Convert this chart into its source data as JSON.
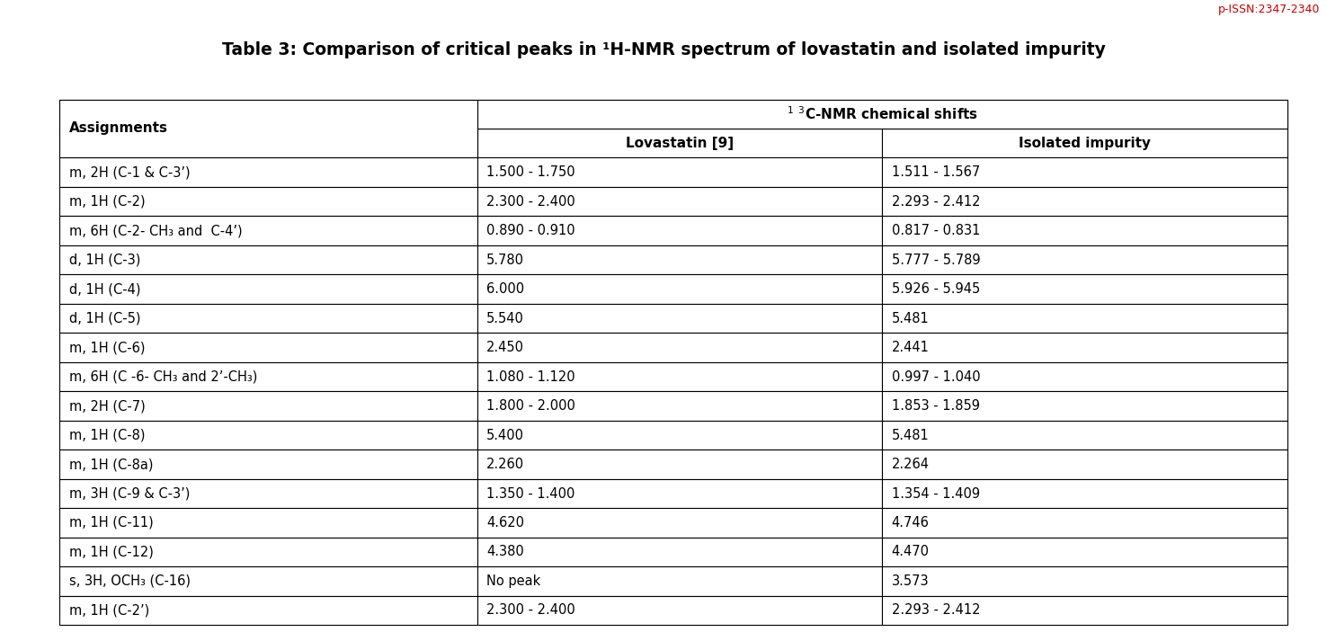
{
  "title": "Table 3: Comparison of critical peaks in ¹H-NMR spectrum of lovastatin and isolated impurity",
  "header_nmr": "¹ ³C-NMR chemical shifts",
  "header_col1": "Assignments",
  "header_col2": "Lovastatin [9]",
  "header_col3": "Isolated impurity",
  "watermark": "p-ISSN:2347-2340",
  "rows": [
    [
      "m, 2H (C-1 & C-3’)",
      "1.500 - 1.750",
      "1.511 - 1.567"
    ],
    [
      "m, 1H (C-2)",
      "2.300 - 2.400",
      "2.293 - 2.412"
    ],
    [
      "m, 6H (C-2- CH₃ and  C-4’)",
      "0.890 - 0.910",
      "0.817 - 0.831"
    ],
    [
      "d, 1H (C-3)",
      "5.780",
      "5.777 - 5.789"
    ],
    [
      "d, 1H (C-4)",
      "6.000",
      "5.926 - 5.945"
    ],
    [
      "d, 1H (C-5)",
      "5.540",
      "5.481"
    ],
    [
      "m, 1H (C-6)",
      "2.450",
      "2.441"
    ],
    [
      "m, 6H (C -6- CH₃ and 2’-CH₃)",
      "1.080 - 1.120",
      "0.997 - 1.040"
    ],
    [
      "m, 2H (C-7)",
      "1.800 - 2.000",
      "1.853 - 1.859"
    ],
    [
      "m, 1H (C-8)",
      "5.400",
      "5.481"
    ],
    [
      "m, 1H (C-8a)",
      "2.260",
      "2.264"
    ],
    [
      "m, 3H (C-9 & C-3’)",
      "1.350 - 1.400",
      "1.354 - 1.409"
    ],
    [
      "m, 1H (C-11)",
      "4.620",
      "4.746"
    ],
    [
      "m, 1H (C-12)",
      "4.380",
      "4.470"
    ],
    [
      "s, 3H, OCH₃ (C-16)",
      "No peak",
      "3.573"
    ],
    [
      "m, 1H (C-2’)",
      "2.300 - 2.400",
      "2.293 - 2.412"
    ]
  ],
  "bg_color": "#ffffff",
  "border_color": "#000000",
  "text_color": "#000000",
  "title_fontsize": 13.5,
  "header_fontsize": 11,
  "cell_fontsize": 10.5,
  "watermark_color": "#cc0000",
  "watermark_fontsize": 9
}
